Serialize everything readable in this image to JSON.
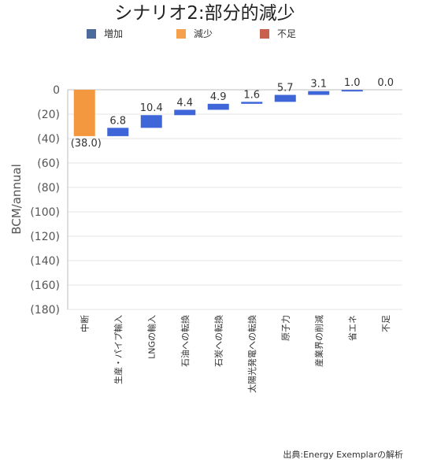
{
  "colors": {
    "increase": "#4a6b9b",
    "decrease": "#f4a04d",
    "shortage": "#c8614d",
    "bar": "#3f66d8",
    "first_bar": "#f4983f"
  },
  "chart_data": {
    "type": "bar",
    "subtype": "waterfall",
    "title": "シナリオ2:部分的減少",
    "ylabel": "BCM/annual",
    "xlabel": "",
    "ylim": [
      -180,
      0
    ],
    "yticks": [
      0,
      -20,
      -40,
      -60,
      -80,
      -100,
      -120,
      -140,
      -160,
      -180
    ],
    "ytick_labels": [
      "0",
      "(20)",
      "(40)",
      "(60)",
      "(80)",
      "(100)",
      "(120)",
      "(140)",
      "(160)",
      "(180)"
    ],
    "grid": true,
    "legend_position": "top",
    "legend": [
      "増加",
      "減少",
      "不足"
    ],
    "categories": [
      "中断",
      "生産・パイプ輸入",
      "LNGの輸入",
      "石油への転換",
      "石炭への転換",
      "太陽光発電への転換",
      "原子力",
      "産業界の削減",
      "省エネ",
      "不足"
    ],
    "values": [
      -38.0,
      6.8,
      10.4,
      4.4,
      4.9,
      1.6,
      5.7,
      3.1,
      1.0,
      0.0
    ],
    "data_labels": [
      "(38.0)",
      "6.8",
      "10.4",
      "4.4",
      "4.9",
      "1.6",
      "5.7",
      "3.1",
      "1.0",
      "0.0"
    ],
    "source": "出典:Energy Exemplarの解析"
  }
}
